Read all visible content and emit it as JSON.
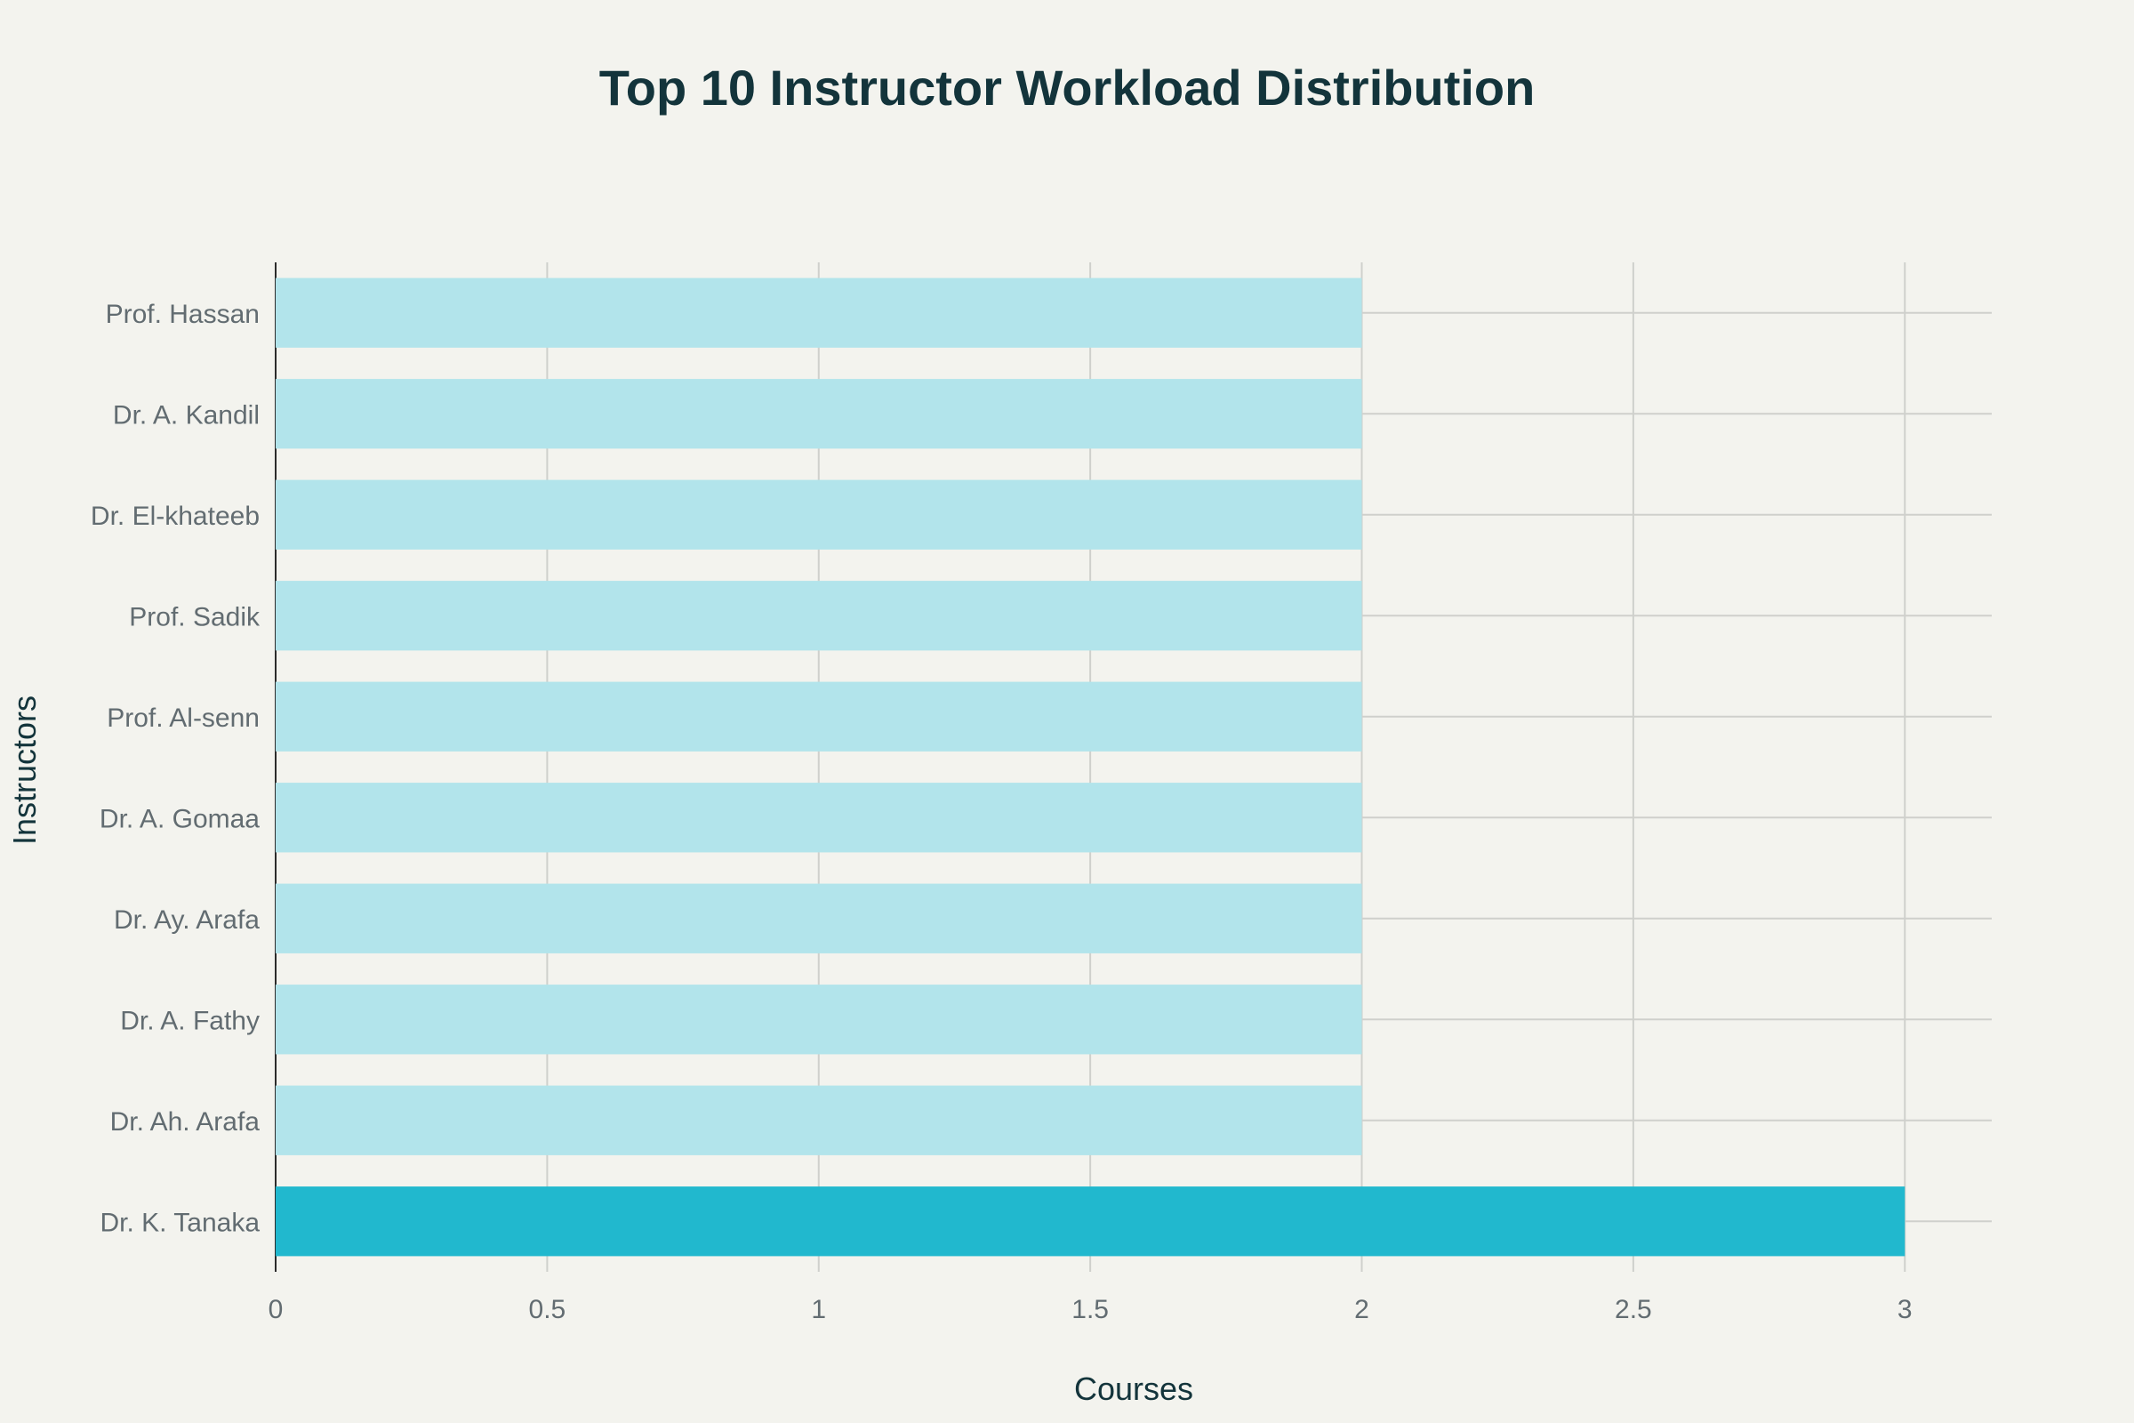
{
  "chart_data": {
    "type": "bar",
    "orientation": "horizontal",
    "title": "Top 10 Instructor Workload Distribution",
    "xlabel": "Courses",
    "ylabel": "Instructors",
    "categories": [
      "Dr. K. Tanaka",
      "Dr. Ah. Arafa",
      "Dr. A. Fathy",
      "Dr. Ay. Arafa",
      "Dr. A. Gomaa",
      "Prof. Al-senn",
      "Prof. Sadik",
      "Dr. El-khateeb",
      "Dr. A. Kandil",
      "Prof. Hassan"
    ],
    "values": [
      3,
      2,
      2,
      2,
      2,
      2,
      2,
      2,
      2,
      2
    ],
    "xlim": [
      0,
      3.16
    ],
    "xticks": [
      0,
      0.5,
      1,
      1.5,
      2,
      2.5,
      3
    ],
    "xtick_labels": [
      "0",
      "0.5",
      "1",
      "1.5",
      "2",
      "2.5",
      "3"
    ],
    "grid": true,
    "legend": "none",
    "colors": {
      "highlight": "#21b8ce",
      "default": "#b2e4eb",
      "background": "#f3f3ee",
      "grid": "#cfd0cc",
      "title": "#13343b",
      "tick": "#626c71"
    }
  }
}
